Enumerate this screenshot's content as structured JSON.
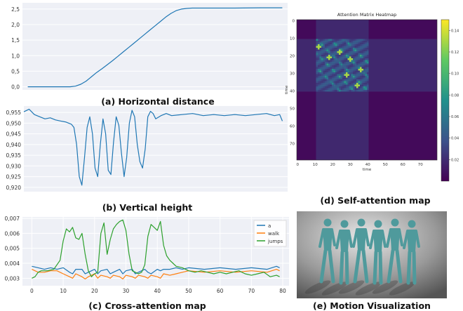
{
  "captions": {
    "a": "(a) Horizontal distance",
    "b": "(b) Vertical height",
    "c": "(c) Cross-attention map",
    "d": "(d) Self-attention map",
    "e": "(e) Motion Visualization"
  },
  "colors": {
    "blue": "#1f77b4",
    "orange": "#ff7f0e",
    "green": "#2ca02c",
    "panel_bg": "#eef0f6",
    "grid": "#ffffff"
  },
  "chart_data": [
    {
      "id": "a",
      "type": "line",
      "title": "",
      "xlabel": "",
      "ylabel": "",
      "ylim": [
        -0.1,
        2.7
      ],
      "xlim": [
        0,
        100
      ],
      "yticks": [
        "0,0",
        "0,5",
        "1,0",
        "1,5",
        "2,0",
        "2,5"
      ],
      "ytick_values": [
        0,
        0.5,
        1.0,
        1.5,
        2.0,
        2.5
      ],
      "grid": true,
      "series": [
        {
          "color": "#1f77b4",
          "x": [
            2,
            10,
            18,
            20,
            22,
            24,
            26,
            28,
            30,
            32,
            34,
            36,
            38,
            40,
            42,
            44,
            46,
            48,
            50,
            52,
            54,
            56,
            58,
            60,
            62,
            64,
            66,
            70,
            80,
            90,
            98
          ],
          "y": [
            0,
            0,
            0,
            0.02,
            0.08,
            0.18,
            0.32,
            0.46,
            0.58,
            0.71,
            0.84,
            0.98,
            1.12,
            1.26,
            1.4,
            1.54,
            1.68,
            1.82,
            1.96,
            2.1,
            2.24,
            2.36,
            2.45,
            2.5,
            2.52,
            2.53,
            2.53,
            2.53,
            2.53,
            2.54,
            2.54
          ]
        }
      ]
    },
    {
      "id": "b",
      "type": "line",
      "title": "",
      "xlabel": "",
      "ylabel": "",
      "ylim": [
        0.918,
        0.958
      ],
      "xlim": [
        0,
        100
      ],
      "yticks": [
        "0,920",
        "0,925",
        "0,930",
        "0,935",
        "0,940",
        "0,945",
        "0,950",
        "0,955"
      ],
      "ytick_values": [
        0.92,
        0.925,
        0.93,
        0.935,
        0.94,
        0.945,
        0.95,
        0.955
      ],
      "grid": true,
      "series": [
        {
          "color": "#1f77b4",
          "x": [
            0,
            2,
            4,
            6,
            8,
            10,
            12,
            14,
            16,
            18,
            19,
            20,
            21,
            22,
            23,
            24,
            25,
            26,
            27,
            28,
            29,
            30,
            31,
            32,
            33,
            34,
            35,
            36,
            37,
            38,
            39,
            40,
            41,
            42,
            43,
            44,
            45,
            46,
            47,
            48,
            49,
            50,
            52,
            54,
            56,
            60,
            64,
            68,
            72,
            76,
            80,
            84,
            88,
            92,
            95,
            97,
            98
          ],
          "y": [
            0.9553,
            0.9565,
            0.954,
            0.953,
            0.952,
            0.9525,
            0.9515,
            0.951,
            0.9505,
            0.9495,
            0.948,
            0.94,
            0.925,
            0.921,
            0.934,
            0.948,
            0.953,
            0.945,
            0.929,
            0.925,
            0.94,
            0.952,
            0.945,
            0.928,
            0.926,
            0.941,
            0.953,
            0.949,
            0.936,
            0.925,
            0.934,
            0.95,
            0.956,
            0.953,
            0.94,
            0.932,
            0.929,
            0.938,
            0.953,
            0.9555,
            0.9545,
            0.952,
            0.9535,
            0.9545,
            0.9535,
            0.954,
            0.9545,
            0.9535,
            0.954,
            0.9535,
            0.954,
            0.9535,
            0.954,
            0.9545,
            0.9535,
            0.954,
            0.951
          ]
        }
      ]
    },
    {
      "id": "c",
      "type": "line",
      "title": "",
      "xlabel": "",
      "ylabel": "",
      "xlim": [
        -3,
        82
      ],
      "ylim": [
        0.0025,
        0.0071
      ],
      "xticks": [
        "0",
        "10",
        "20",
        "30",
        "40",
        "50",
        "60",
        "70",
        "80"
      ],
      "xtick_values": [
        0,
        10,
        20,
        30,
        40,
        50,
        60,
        70,
        80
      ],
      "yticks": [
        "0,003",
        "0,004",
        "0,005",
        "0,006",
        "0,007"
      ],
      "ytick_values": [
        0.003,
        0.004,
        0.005,
        0.006,
        0.007
      ],
      "grid": true,
      "legend_position": "top-right",
      "legend": [
        "a",
        "walk",
        "jumps"
      ],
      "series": [
        {
          "name": "a",
          "color": "#1f77b4",
          "x": [
            0,
            2,
            4,
            6,
            8,
            10,
            12,
            13,
            14,
            16,
            17,
            18,
            20,
            21,
            22,
            24,
            25,
            26,
            28,
            29,
            30,
            32,
            33,
            34,
            36,
            37,
            38,
            40,
            41,
            42,
            44,
            46,
            48,
            50,
            55,
            60,
            65,
            70,
            75,
            78,
            79
          ],
          "y": [
            0.0038,
            0.0037,
            0.0036,
            0.0037,
            0.0036,
            0.0037,
            0.0034,
            0.0033,
            0.0036,
            0.0036,
            0.0033,
            0.0034,
            0.0036,
            0.0033,
            0.0035,
            0.0036,
            0.0033,
            0.0034,
            0.0036,
            0.0033,
            0.0035,
            0.0036,
            0.0033,
            0.0034,
            0.0036,
            0.0034,
            0.0033,
            0.0036,
            0.0035,
            0.0036,
            0.0036,
            0.0037,
            0.0036,
            0.0037,
            0.0036,
            0.0037,
            0.0036,
            0.0037,
            0.0036,
            0.0038,
            0.0037
          ]
        },
        {
          "name": "walk",
          "color": "#ff7f0e",
          "x": [
            0,
            2,
            4,
            6,
            8,
            10,
            12,
            13,
            14,
            16,
            17,
            18,
            20,
            21,
            22,
            24,
            25,
            26,
            28,
            29,
            30,
            32,
            33,
            34,
            36,
            37,
            38,
            40,
            41,
            42,
            44,
            46,
            48,
            50,
            55,
            60,
            65,
            70,
            75,
            78,
            79
          ],
          "y": [
            0.0036,
            0.0034,
            0.0034,
            0.0035,
            0.0035,
            0.0033,
            0.0031,
            0.003,
            0.0033,
            0.0031,
            0.00295,
            0.0031,
            0.0033,
            0.003,
            0.0032,
            0.0031,
            0.003,
            0.0032,
            0.0031,
            0.00295,
            0.0032,
            0.0031,
            0.003,
            0.0032,
            0.0031,
            0.003,
            0.0032,
            0.0031,
            0.003,
            0.0033,
            0.0032,
            0.0033,
            0.0034,
            0.0035,
            0.0034,
            0.0035,
            0.0034,
            0.0035,
            0.0034,
            0.0036,
            0.0035
          ]
        },
        {
          "name": "jumps",
          "color": "#2ca02c",
          "x": [
            0,
            1,
            2,
            3,
            5,
            7,
            9,
            10,
            11,
            12,
            13,
            14,
            15,
            16,
            17,
            18,
            19,
            20,
            21,
            22,
            23,
            24,
            25,
            26,
            27,
            28,
            29,
            30,
            31,
            32,
            33,
            34,
            35,
            36,
            37,
            38,
            39,
            40,
            41,
            42,
            43,
            44,
            45,
            46,
            48,
            50,
            52,
            54,
            56,
            58,
            60,
            62,
            64,
            66,
            68,
            70,
            72,
            74,
            76,
            78,
            79
          ],
          "y": [
            0.003,
            0.0031,
            0.0034,
            0.0035,
            0.0035,
            0.0036,
            0.0042,
            0.0055,
            0.0063,
            0.0061,
            0.0064,
            0.0057,
            0.0056,
            0.006,
            0.0046,
            0.0035,
            0.0031,
            0.0033,
            0.0034,
            0.006,
            0.0067,
            0.0046,
            0.0056,
            0.0063,
            0.0066,
            0.0068,
            0.0069,
            0.0062,
            0.0046,
            0.0035,
            0.0034,
            0.0033,
            0.0034,
            0.0039,
            0.0058,
            0.0066,
            0.0064,
            0.0062,
            0.0068,
            0.0052,
            0.0045,
            0.0042,
            0.004,
            0.0038,
            0.0037,
            0.0035,
            0.0034,
            0.0035,
            0.0034,
            0.0033,
            0.0034,
            0.0033,
            0.0034,
            0.0035,
            0.0033,
            0.0032,
            0.0033,
            0.0034,
            0.0031,
            0.0032,
            0.0031
          ]
        }
      ]
    },
    {
      "id": "d",
      "type": "heatmap",
      "title": "Attention Matrix Heatmap",
      "xlabel": "time",
      "ylabel": "time",
      "size": 80,
      "xticks": [
        "0",
        "10",
        "20",
        "30",
        "40",
        "50",
        "60",
        "70"
      ],
      "yticks": [
        "0",
        "10",
        "20",
        "30",
        "40",
        "50",
        "60",
        "70"
      ],
      "tick_values": [
        0,
        10,
        20,
        30,
        40,
        50,
        60,
        70
      ],
      "colorbar_ticks": [
        "0.14",
        "0.12",
        "0.10",
        "0.08",
        "0.06",
        "0.04",
        "0.02"
      ],
      "colorbar_values": [
        0.14,
        0.12,
        0.1,
        0.08,
        0.06,
        0.04,
        0.02
      ],
      "vmin": 0.0,
      "vmax": 0.15,
      "active_range": [
        11,
        40
      ],
      "diagonal_bands": [
        0,
        8,
        16,
        -8,
        -16
      ],
      "hotspots": [
        [
          15,
          12
        ],
        [
          21,
          18
        ],
        [
          31,
          28
        ],
        [
          37,
          34
        ],
        [
          22,
          30
        ],
        [
          28,
          36
        ],
        [
          18,
          24
        ]
      ]
    }
  ],
  "scene": {
    "figure_count": 6,
    "body_color": "#4f9a9c"
  }
}
